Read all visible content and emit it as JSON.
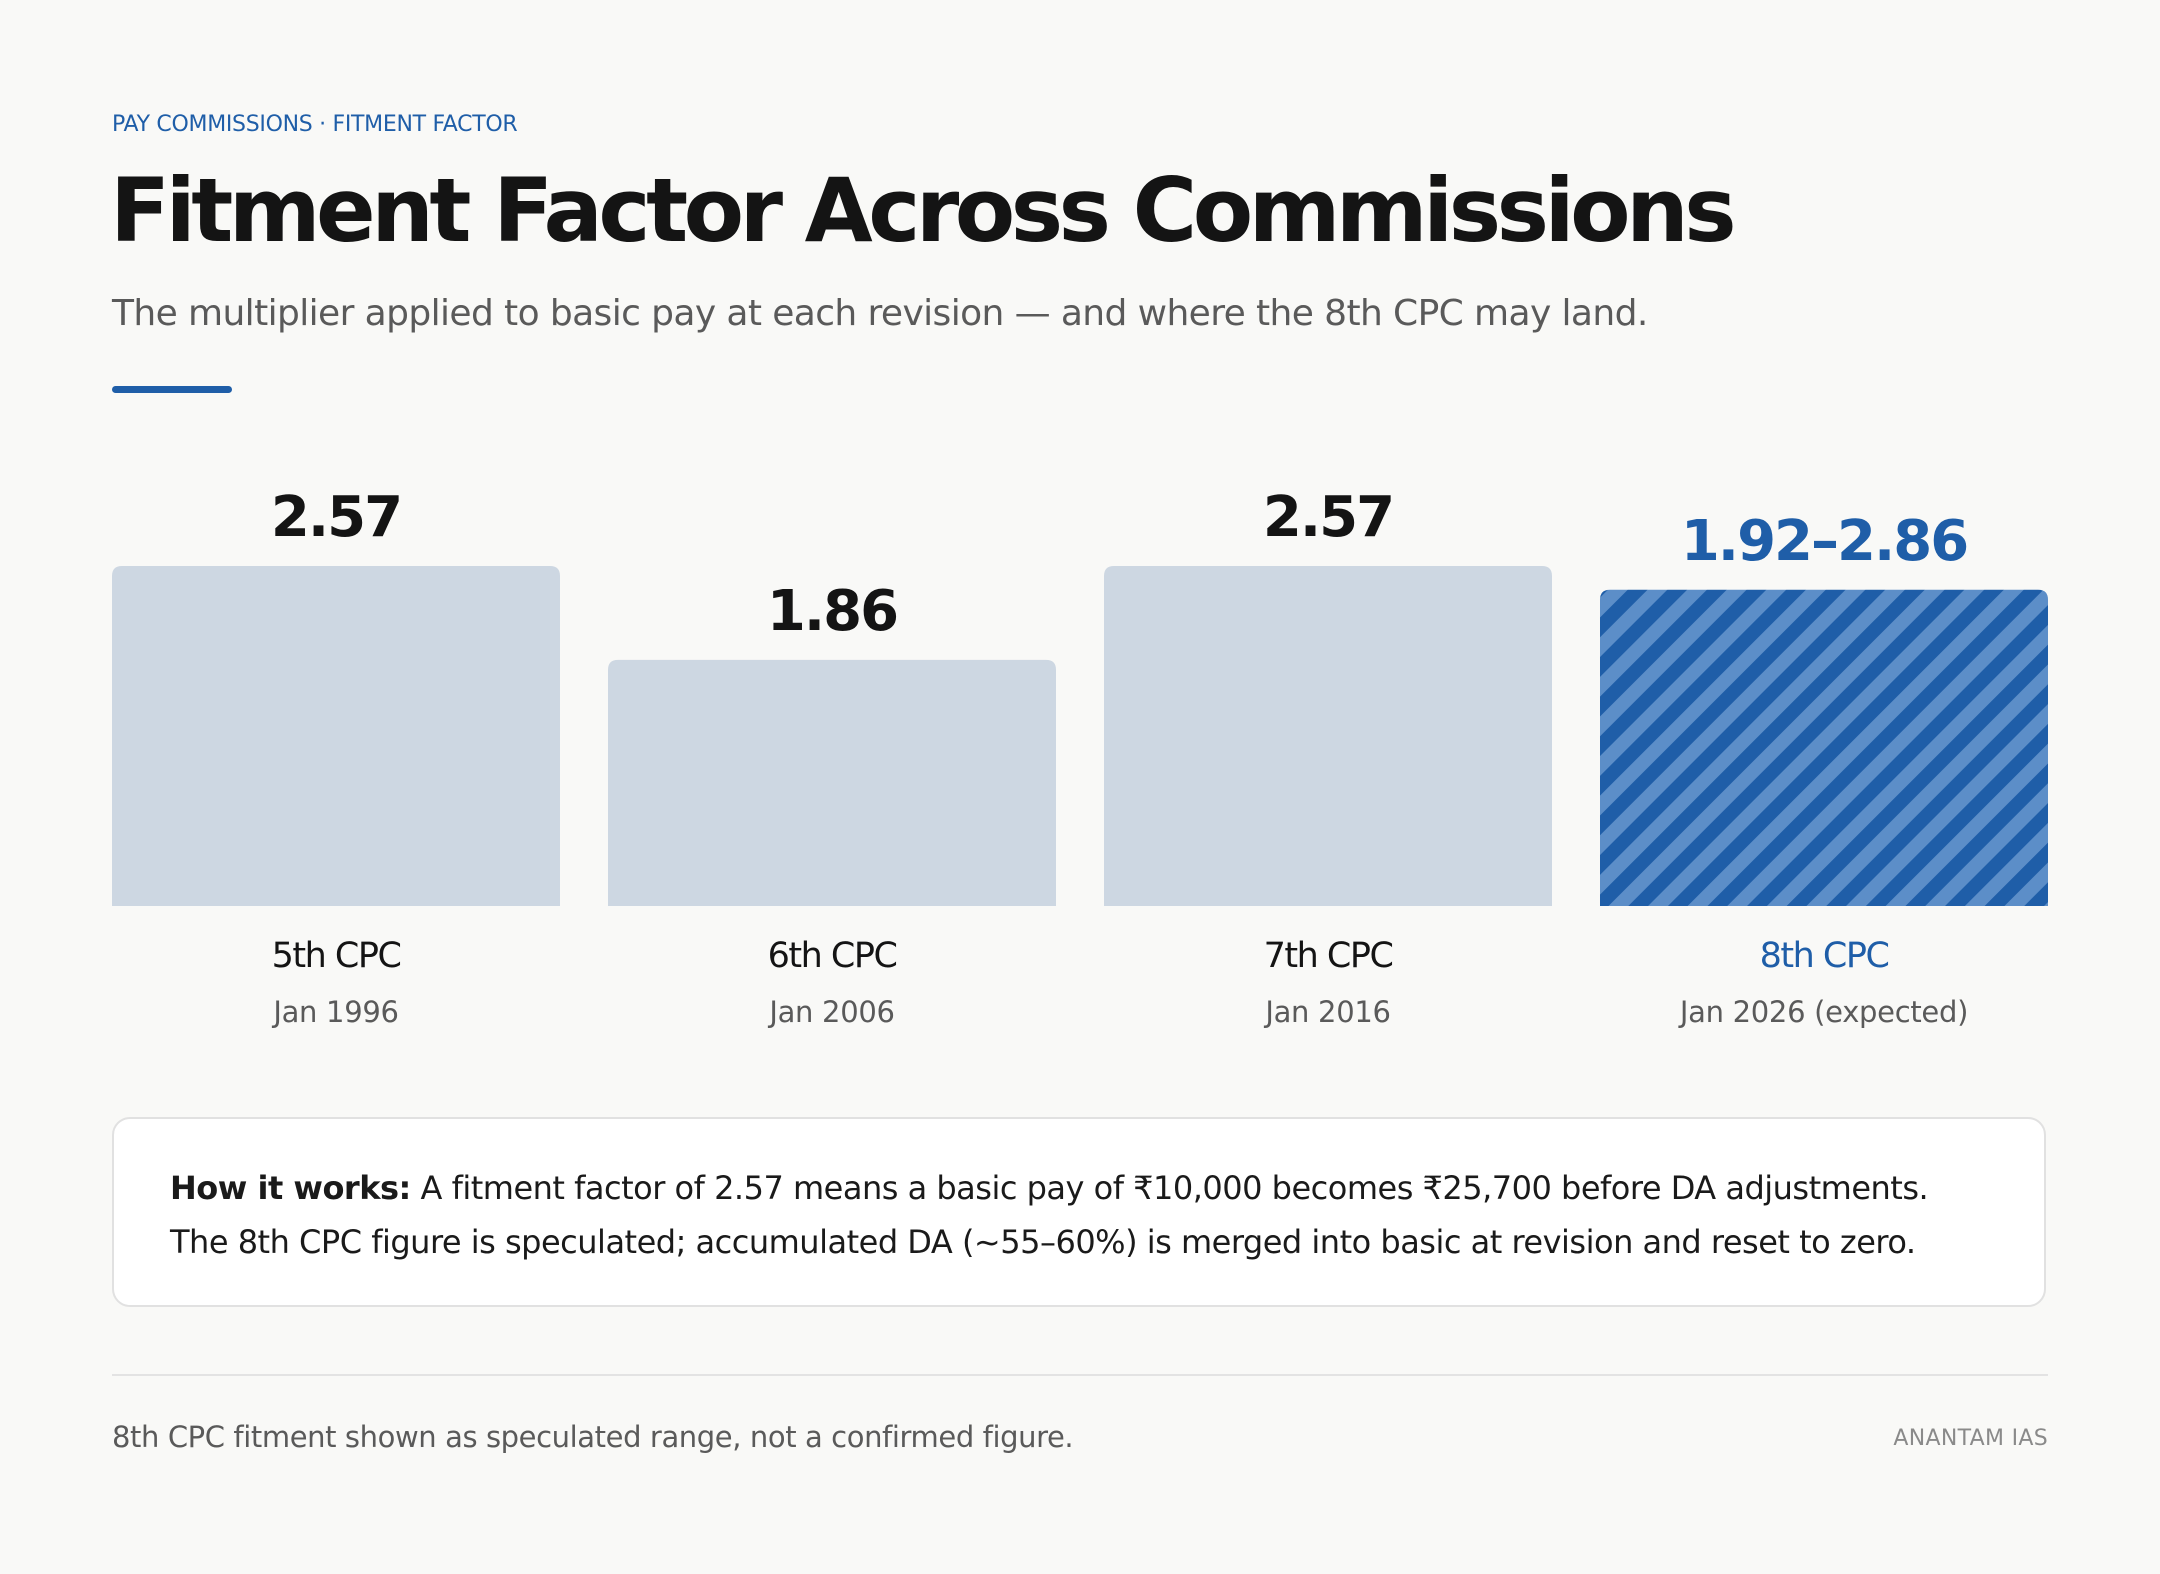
{
  "header": {
    "kicker": "PAY COMMISSIONS · FITMENT FACTOR",
    "title": "Fitment Factor Across Commissions",
    "subtitle": "The multiplier applied to basic pay at each revision — and where the 8th CPC may land."
  },
  "colors": {
    "accent": "#1f5ea8",
    "bar": "#cdd7e2",
    "text": "#141414",
    "muted": "#5a5a5a"
  },
  "chart_data": {
    "type": "bar",
    "title": "Fitment Factor Across Commissions",
    "xlabel": "",
    "ylabel": "",
    "grid": false,
    "legend": "none",
    "ylim": [
      0,
      2.6
    ],
    "categories": [
      "5th CPC",
      "6th CPC",
      "7th CPC",
      "8th CPC"
    ],
    "dates": [
      "Jan 1996",
      "Jan 2006",
      "Jan 2016",
      "Jan 2026 (expected)"
    ],
    "value_labels": [
      "2.57",
      "1.86",
      "2.57",
      "1.92–2.86"
    ],
    "values": [
      2.57,
      1.86,
      2.57,
      2.39
    ],
    "range": {
      "category": "8th CPC",
      "low": 1.92,
      "high": 2.86,
      "speculated": true
    }
  },
  "note": {
    "lead": "How it works:",
    "line1": " A fitment factor of 2.57 means a basic pay of ₹10,000 becomes ₹25,700 before DA adjustments.",
    "line2": "The 8th CPC figure is speculated; accumulated DA (~55–60%) is merged into basic at revision and reset to zero."
  },
  "footer": {
    "footnote": "8th CPC fitment shown as speculated range, not a confirmed figure.",
    "brand": "ANANTAM IAS"
  }
}
